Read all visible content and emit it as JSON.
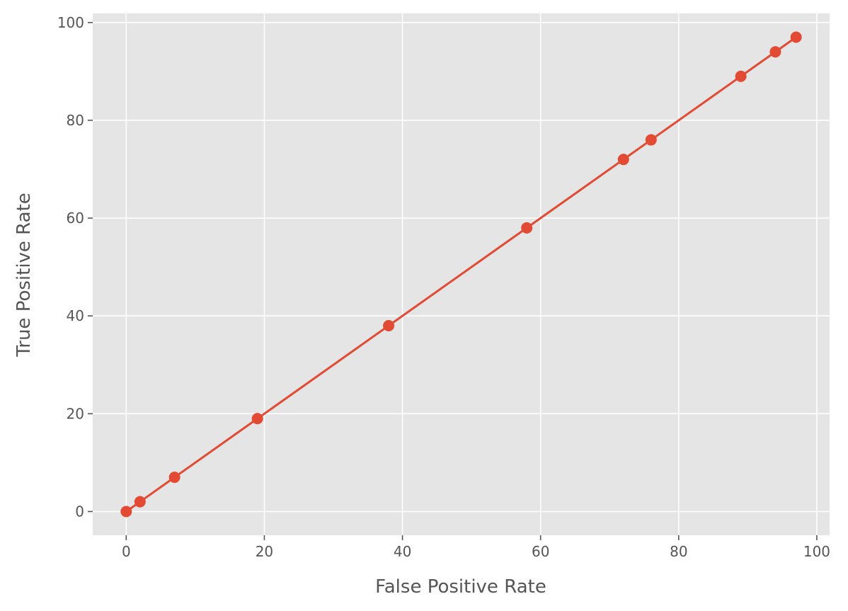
{
  "chart_data": {
    "type": "line",
    "x_label": "False Positive Rate",
    "y_label": "True Positive Rate",
    "x": [
      0,
      2,
      7,
      19,
      38,
      58,
      72,
      76,
      89,
      94,
      97
    ],
    "series": [
      {
        "name": null,
        "color": "#E24A33",
        "values": [
          0,
          2,
          7,
          19,
          38,
          58,
          72,
          76,
          89,
          94,
          97
        ]
      }
    ],
    "xlim": [
      -4.85,
      101.85
    ],
    "ylim": [
      -4.85,
      101.85
    ],
    "xticks": [
      0,
      20,
      40,
      60,
      80,
      100
    ],
    "yticks": [
      0,
      20,
      40,
      60,
      80,
      100
    ],
    "grid": true,
    "markers": true
  }
}
